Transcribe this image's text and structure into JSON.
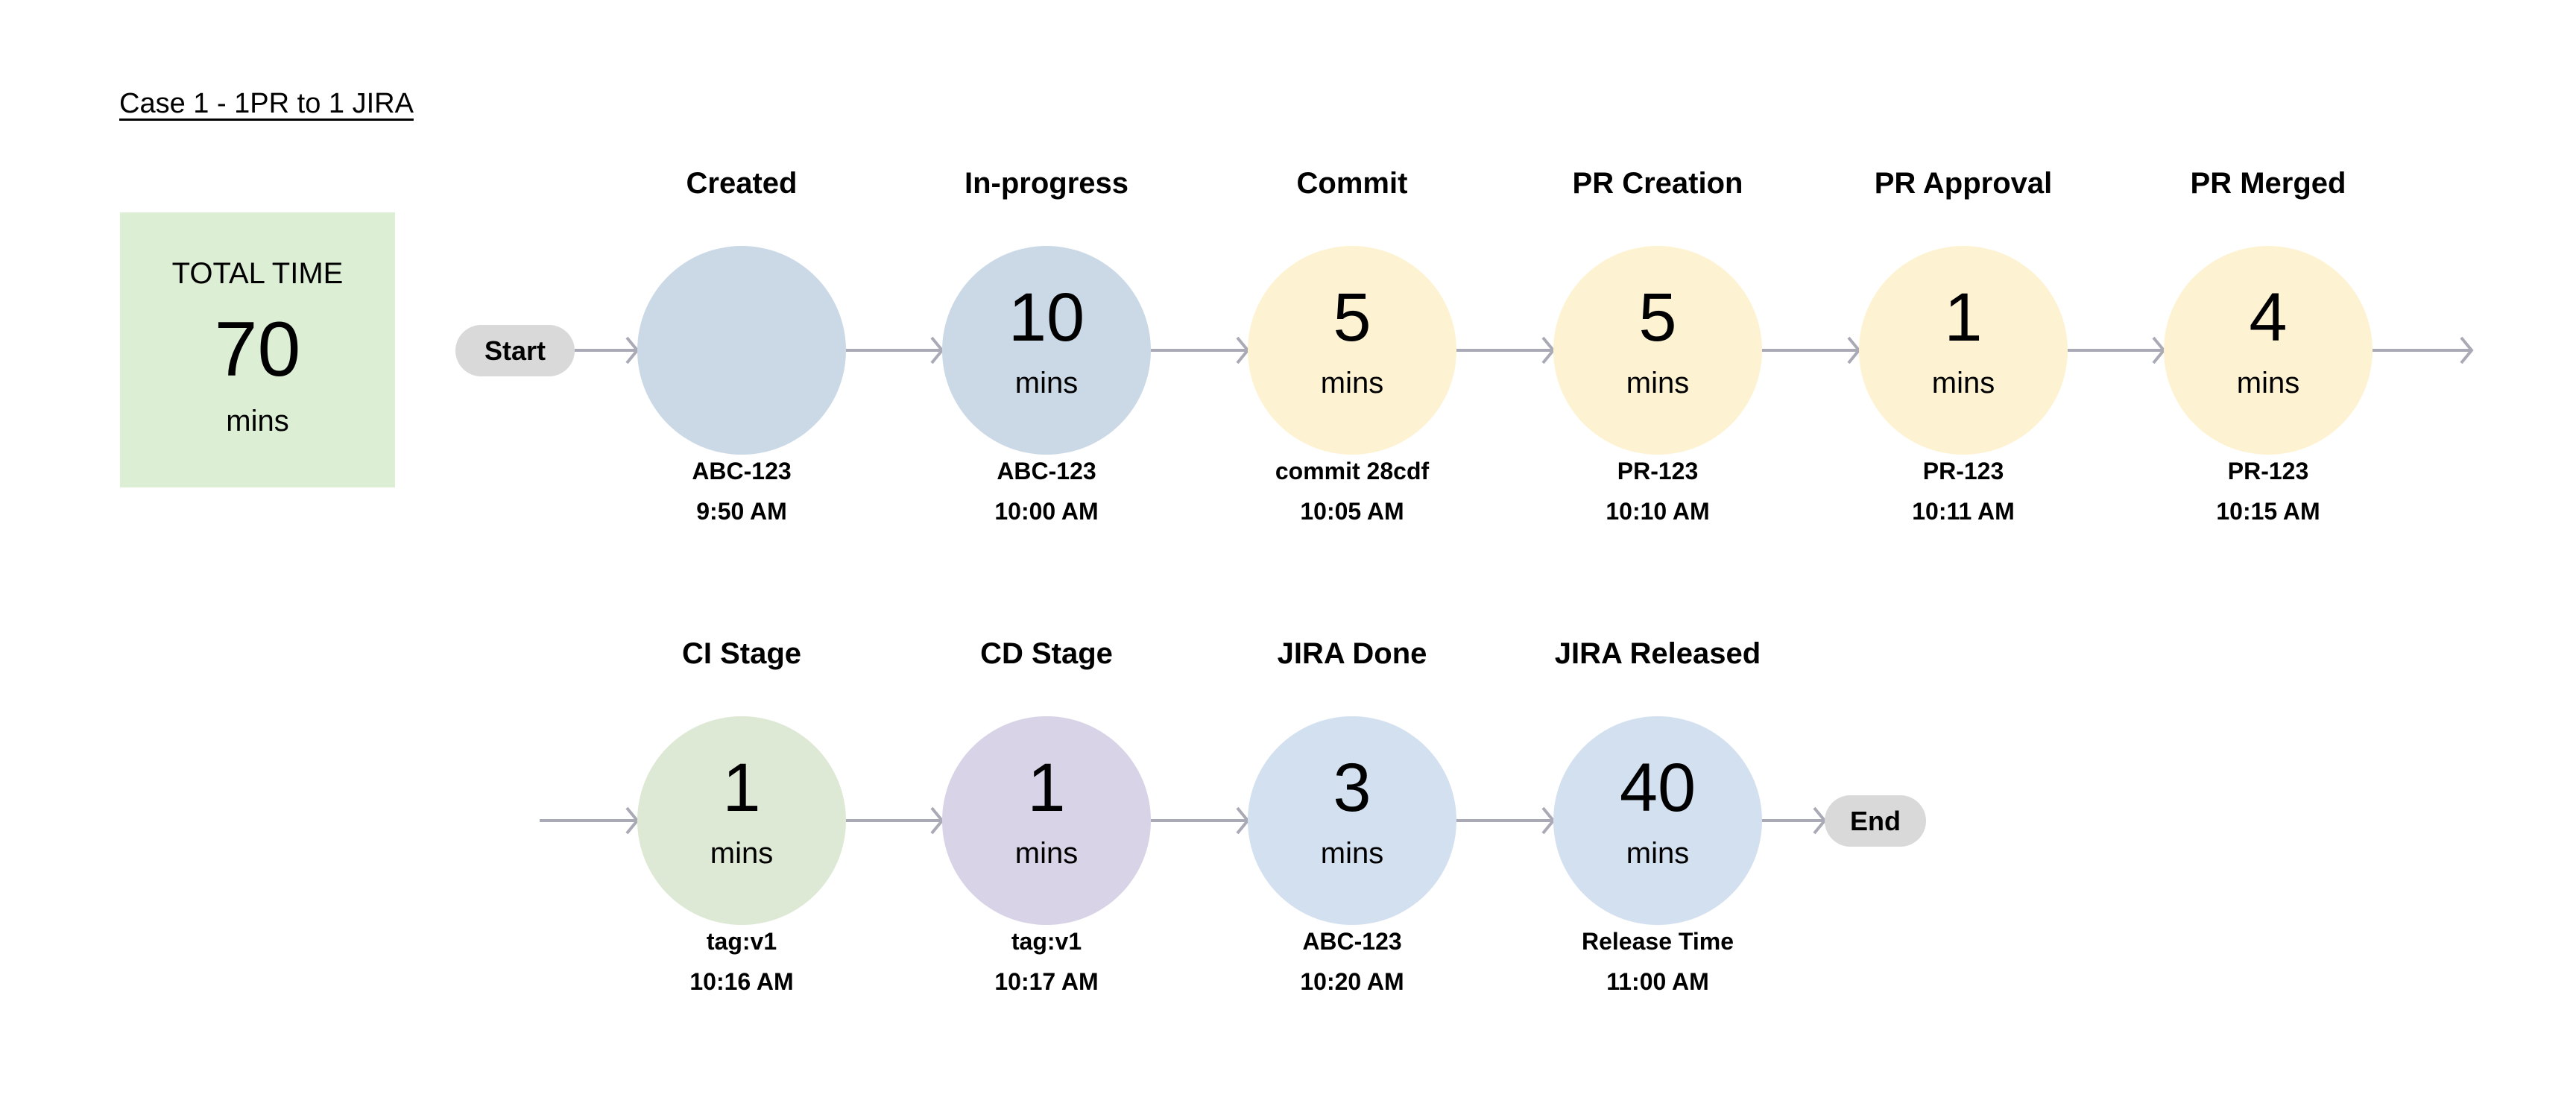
{
  "title": "Case 1 - 1PR to 1 JIRA",
  "total": {
    "label": "TOTAL TIME",
    "value": "70",
    "unit": "mins"
  },
  "start_label": "Start",
  "end_label": "End",
  "colors": {
    "arrow": "#a9aab5",
    "total_bg": "#dcefd5",
    "pill": "#d9d9d9"
  },
  "rows": [
    [
      {
        "name": "Created",
        "duration": "",
        "unit": "",
        "ref": "ABC-123",
        "time": "9:50 AM",
        "color": "#cbd9e6"
      },
      {
        "name": "In-progress",
        "duration": "10",
        "unit": "mins",
        "ref": "ABC-123",
        "time": "10:00 AM",
        "color": "#cbd9e6"
      },
      {
        "name": "Commit",
        "duration": "5",
        "unit": "mins",
        "ref": "commit 28cdf",
        "time": "10:05 AM",
        "color": "#fdf3d2"
      },
      {
        "name": "PR Creation",
        "duration": "5",
        "unit": "mins",
        "ref": "PR-123",
        "time": "10:10 AM",
        "color": "#fdf3d2"
      },
      {
        "name": "PR Approval",
        "duration": "1",
        "unit": "mins",
        "ref": "PR-123",
        "time": "10:11 AM",
        "color": "#fdf3d2"
      },
      {
        "name": "PR Merged",
        "duration": "4",
        "unit": "mins",
        "ref": "PR-123",
        "time": "10:15 AM",
        "color": "#fdf3d2"
      }
    ],
    [
      {
        "name": "CI Stage",
        "duration": "1",
        "unit": "mins",
        "ref": "tag:v1",
        "time": "10:16 AM",
        "color": "#dde9d4"
      },
      {
        "name": "CD Stage",
        "duration": "1",
        "unit": "mins",
        "ref": "tag:v1",
        "time": "10:17 AM",
        "color": "#d8d3e6"
      },
      {
        "name": "JIRA Done",
        "duration": "3",
        "unit": "mins",
        "ref": "ABC-123",
        "time": "10:20 AM",
        "color": "#d3e0f0"
      },
      {
        "name": "JIRA Released",
        "duration": "40",
        "unit": "mins",
        "ref": "Release Time",
        "time": "11:00 AM",
        "color": "#d3e0f0"
      }
    ]
  ]
}
